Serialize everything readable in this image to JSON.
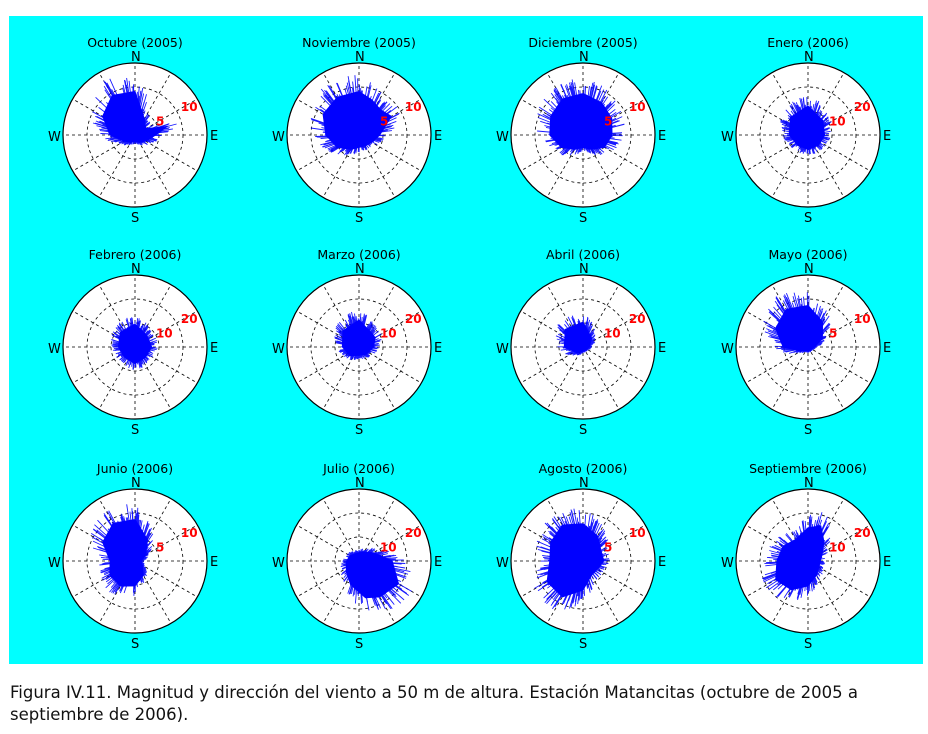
{
  "caption": "Figura IV.11. Magnitud y dirección del viento a 50 m de altura. Estación Matancitas (octubre de 2005 a septiembre de 2006).",
  "colors": {
    "panel_background": "#00ffff",
    "plot_face": "#ffffff",
    "wind_lines": "#0000ff",
    "ring_labels": "#ff0000",
    "grid": "#000000"
  },
  "chart_data": [
    {
      "type": "polar",
      "title": "Octubre (2005)",
      "directions": [
        "N",
        "E",
        "S",
        "W"
      ],
      "r_ticks": [
        5,
        10
      ],
      "r_tick_labels": [
        "5",
        "10"
      ],
      "rmax": 12.5,
      "grid": true,
      "envelope": {
        "theta_deg": [
          0,
          30,
          60,
          75,
          90,
          120,
          150,
          180,
          210,
          240,
          270,
          300,
          330
        ],
        "magnitude": [
          10.5,
          4.5,
          3,
          8,
          5,
          3,
          2,
          1.5,
          2,
          3,
          6,
          9,
          11
        ]
      }
    },
    {
      "type": "polar",
      "title": "Noviembre (2005)",
      "directions": [
        "N",
        "E",
        "S",
        "W"
      ],
      "r_ticks": [
        5,
        10
      ],
      "r_tick_labels": [
        "5",
        "10"
      ],
      "rmax": 12.5,
      "grid": true,
      "envelope": {
        "theta_deg": [
          0,
          20,
          40,
          60,
          90,
          120,
          150,
          180,
          210,
          240,
          270,
          300,
          330
        ],
        "magnitude": [
          10.5,
          9,
          8,
          9,
          5,
          3.5,
          3,
          3,
          4,
          6,
          8,
          10,
          10.5
        ]
      }
    },
    {
      "type": "polar",
      "title": "Diciembre (2005)",
      "directions": [
        "N",
        "E",
        "S",
        "W"
      ],
      "r_ticks": [
        5,
        10
      ],
      "r_tick_labels": [
        "5",
        "10"
      ],
      "rmax": 12.5,
      "grid": true,
      "envelope": {
        "theta_deg": [
          0,
          30,
          60,
          90,
          120,
          150,
          180,
          210,
          240,
          270,
          300,
          330
        ],
        "magnitude": [
          10,
          9,
          8,
          7,
          6,
          4,
          3,
          4,
          6,
          8,
          9,
          10
        ]
      }
    },
    {
      "type": "polar",
      "title": "Enero (2006)",
      "directions": [
        "N",
        "E",
        "S",
        "W"
      ],
      "r_ticks": [
        10,
        20
      ],
      "r_tick_labels": [
        "10",
        "20"
      ],
      "rmax": 25,
      "grid": true,
      "envelope": {
        "theta_deg": [
          0,
          45,
          90,
          135,
          180,
          225,
          270,
          315
        ],
        "magnitude": [
          14,
          10,
          8,
          7,
          7,
          7,
          9,
          12
        ]
      }
    },
    {
      "type": "polar",
      "title": "Febrero (2006)",
      "directions": [
        "N",
        "E",
        "S",
        "W"
      ],
      "r_ticks": [
        10,
        20
      ],
      "r_tick_labels": [
        "10",
        "20"
      ],
      "rmax": 25,
      "grid": true,
      "envelope": {
        "theta_deg": [
          0,
          45,
          90,
          135,
          180,
          225,
          270,
          315
        ],
        "magnitude": [
          11,
          8,
          8,
          7,
          8,
          7,
          8,
          10
        ]
      }
    },
    {
      "type": "polar",
      "title": "Marzo (2006)",
      "directions": [
        "N",
        "E",
        "S",
        "W"
      ],
      "r_ticks": [
        10,
        20
      ],
      "r_tick_labels": [
        "10",
        "20"
      ],
      "rmax": 25,
      "grid": true,
      "envelope": {
        "theta_deg": [
          0,
          45,
          60,
          90,
          135,
          180,
          225,
          270,
          315
        ],
        "magnitude": [
          13,
          9,
          9,
          7,
          5,
          4,
          6,
          8,
          11
        ]
      }
    },
    {
      "type": "polar",
      "title": "Abril (2006)",
      "directions": [
        "N",
        "E",
        "S",
        "W"
      ],
      "r_ticks": [
        10,
        20
      ],
      "r_tick_labels": [
        "10",
        "20"
      ],
      "rmax": 25,
      "grid": true,
      "envelope": {
        "theta_deg": [
          0,
          45,
          90,
          135,
          180,
          225,
          270,
          315
        ],
        "magnitude": [
          12,
          6,
          3,
          2,
          2,
          4,
          9,
          12
        ]
      }
    },
    {
      "type": "polar",
      "title": "Mayo (2006)",
      "directions": [
        "N",
        "E",
        "S",
        "W"
      ],
      "r_ticks": [
        5,
        10
      ],
      "r_tick_labels": [
        "5",
        "10"
      ],
      "rmax": 12.5,
      "grid": true,
      "envelope": {
        "theta_deg": [
          0,
          30,
          60,
          90,
          120,
          150,
          180,
          210,
          240,
          270,
          300,
          330
        ],
        "magnitude": [
          10,
          7,
          4,
          1.5,
          1,
          1,
          1,
          1,
          2,
          6,
          9,
          10.5
        ]
      }
    },
    {
      "type": "polar",
      "title": "Junio (2006)",
      "directions": [
        "N",
        "E",
        "S",
        "W"
      ],
      "r_ticks": [
        5,
        10
      ],
      "r_tick_labels": [
        "5",
        "10"
      ],
      "rmax": 12.5,
      "grid": true,
      "envelope": {
        "theta_deg": [
          0,
          30,
          60,
          90,
          120,
          150,
          180,
          210,
          240,
          270,
          300,
          330
        ],
        "magnitude": [
          10,
          6,
          3,
          1.5,
          2,
          4,
          6,
          7,
          7,
          6,
          9,
          10.5
        ]
      }
    },
    {
      "type": "polar",
      "title": "Julio (2006)",
      "directions": [
        "N",
        "E",
        "S",
        "W"
      ],
      "r_ticks": [
        10,
        20
      ],
      "r_tick_labels": [
        "10",
        "20"
      ],
      "rmax": 25,
      "grid": true,
      "envelope": {
        "theta_deg": [
          0,
          30,
          60,
          90,
          120,
          150,
          170,
          200,
          230,
          270,
          300,
          330
        ],
        "magnitude": [
          4,
          5,
          8,
          16,
          22,
          20,
          18,
          12,
          8,
          6,
          5,
          4
        ]
      }
    },
    {
      "type": "polar",
      "title": "Agosto (2006)",
      "directions": [
        "N",
        "E",
        "S",
        "W"
      ],
      "r_ticks": [
        5,
        10
      ],
      "r_tick_labels": [
        "5",
        "10"
      ],
      "rmax": 12.5,
      "grid": true,
      "envelope": {
        "theta_deg": [
          0,
          30,
          60,
          90,
          120,
          150,
          180,
          210,
          240,
          270,
          300,
          330
        ],
        "magnitude": [
          9,
          7,
          5,
          5,
          4,
          4,
          7,
          10,
          10,
          8,
          9,
          10
        ]
      }
    },
    {
      "type": "polar",
      "title": "Septiembre (2006)",
      "directions": [
        "N",
        "E",
        "S",
        "W"
      ],
      "r_ticks": [
        10,
        20
      ],
      "r_tick_labels": [
        "10",
        "20"
      ],
      "rmax": 25,
      "grid": true,
      "envelope": {
        "theta_deg": [
          0,
          20,
          40,
          60,
          90,
          120,
          150,
          180,
          210,
          240,
          270,
          300,
          330
        ],
        "magnitude": [
          16,
          18,
          12,
          8,
          6,
          6,
          8,
          12,
          16,
          18,
          15,
          14,
          12
        ]
      }
    }
  ]
}
